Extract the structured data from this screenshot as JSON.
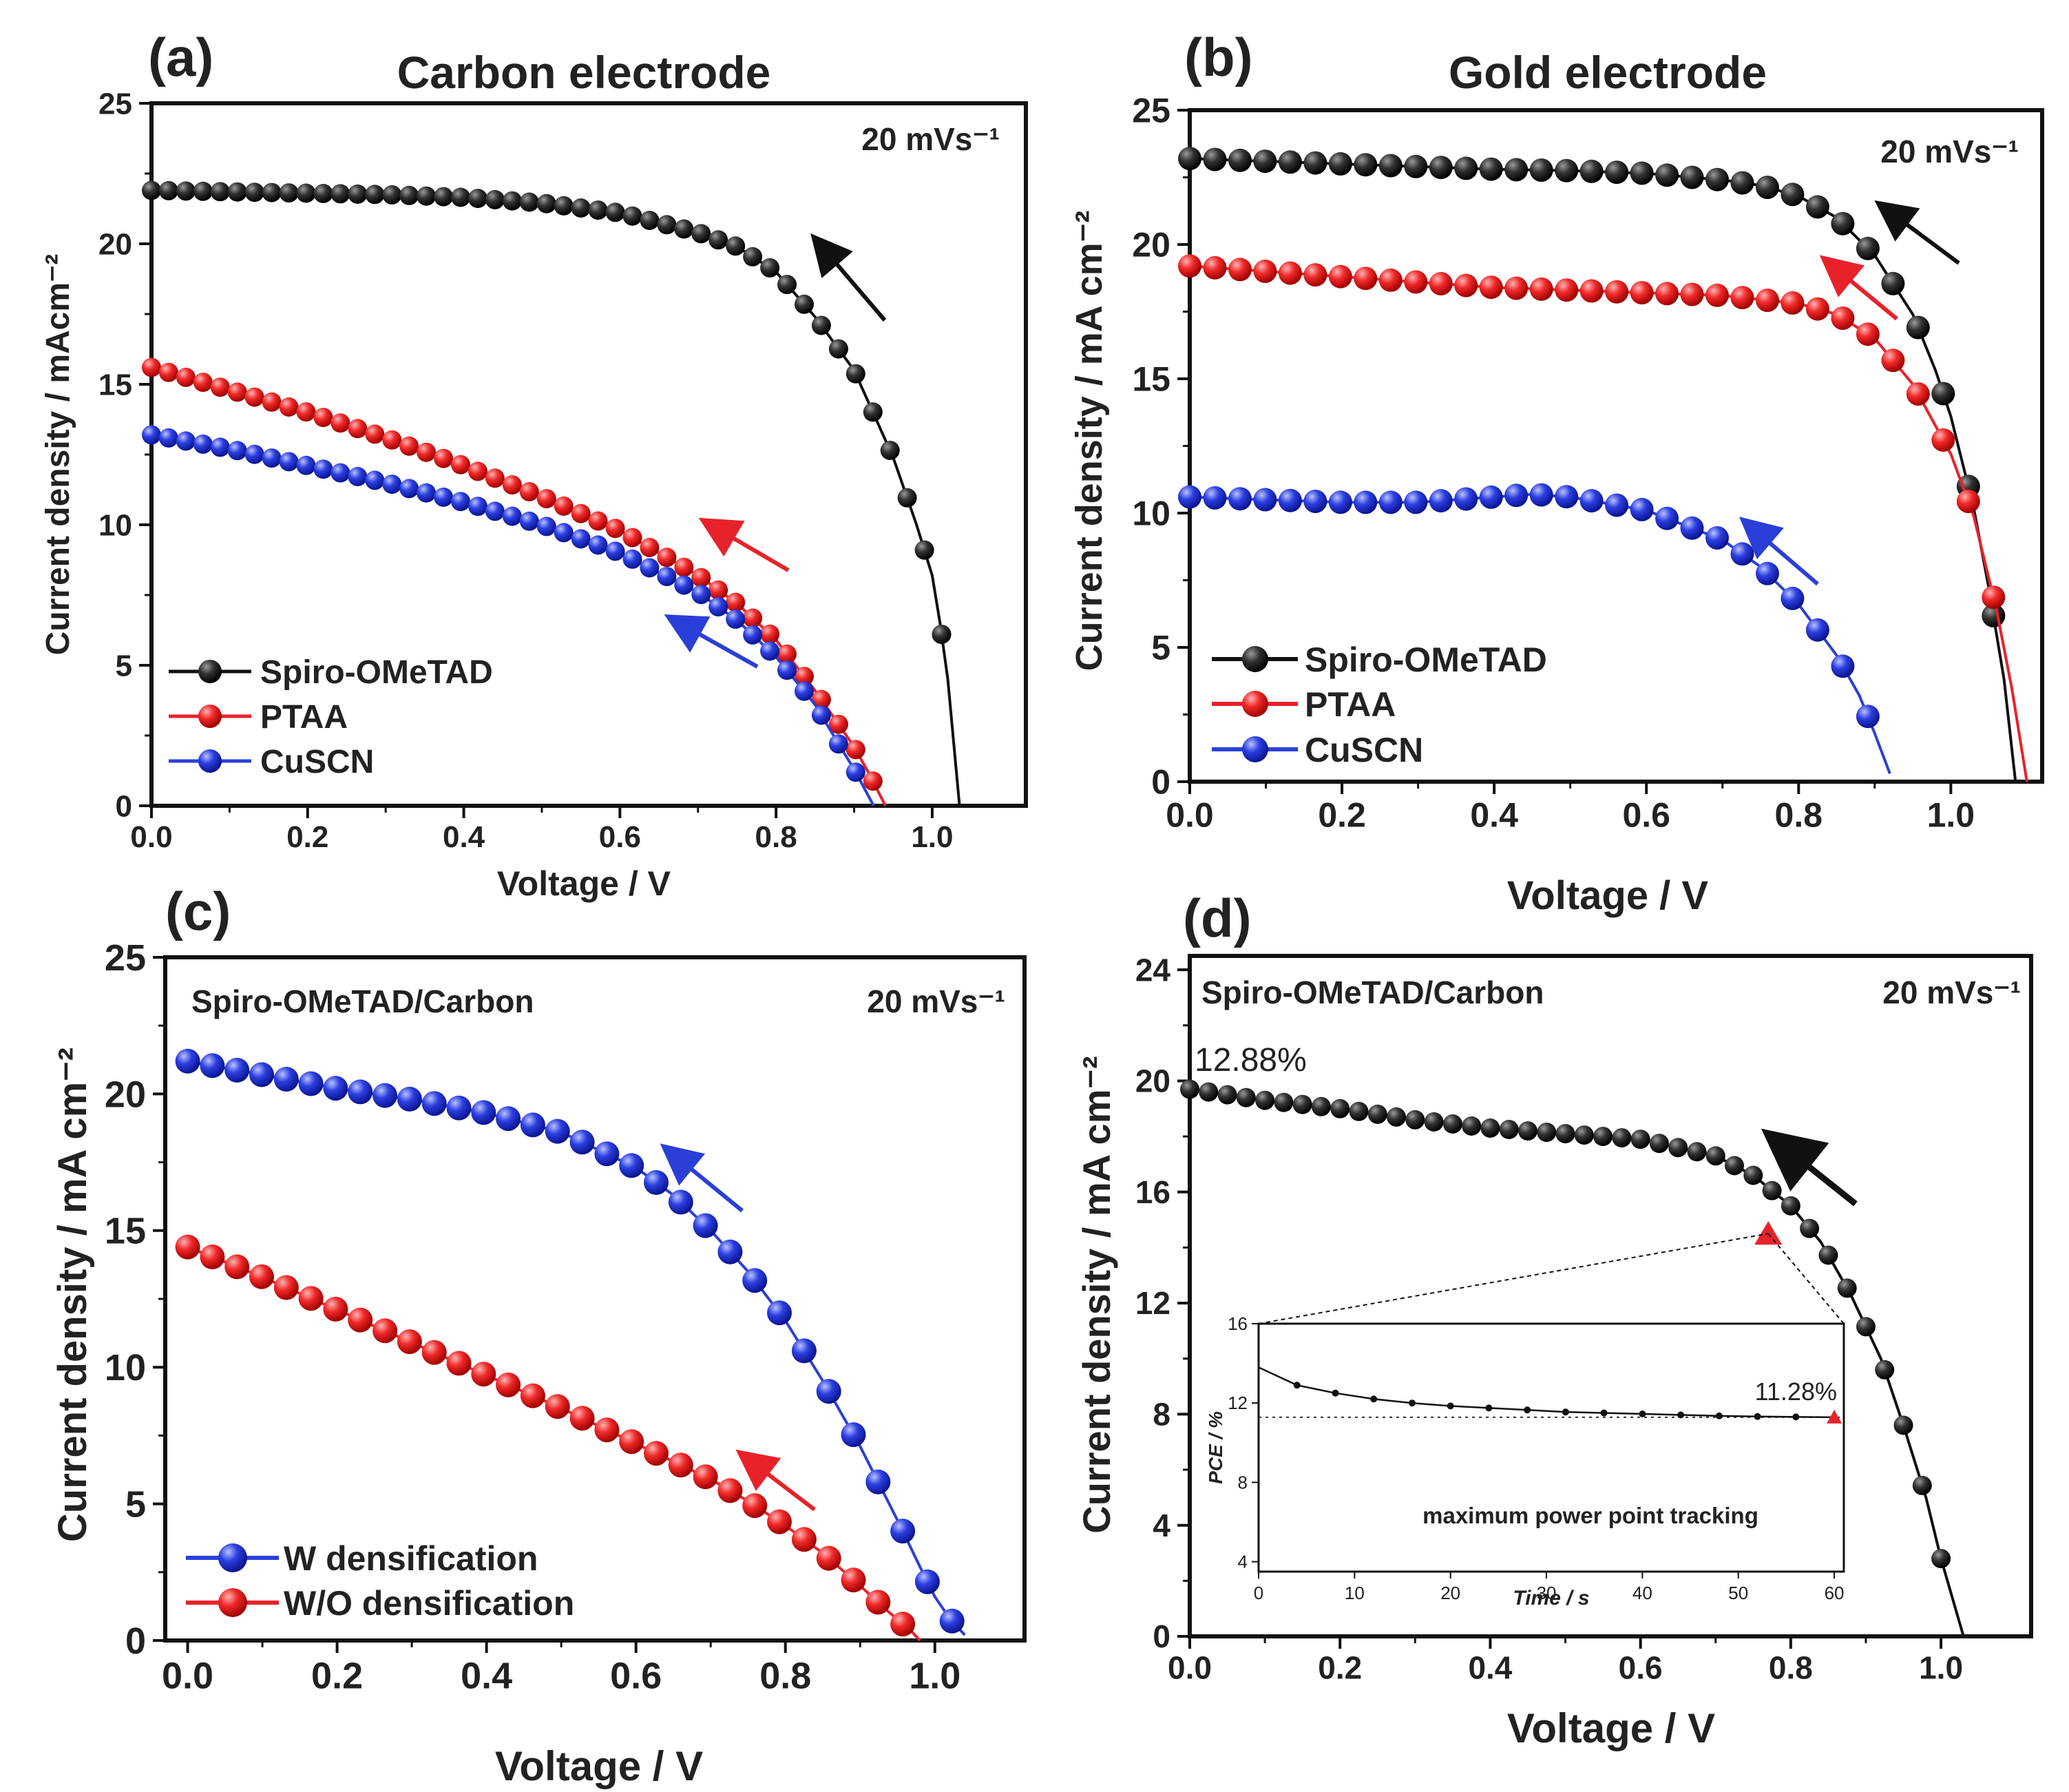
{
  "figure": "perovskite solar cell J-V curves",
  "chart_data": [
    {
      "panel": "(a)",
      "type": "line",
      "title": "Carbon electrode",
      "scan_rate": "20 mVs⁻¹",
      "xlabel": "Voltage / V",
      "ylabel": "Current density / mAcm⁻²",
      "xlim": [
        0,
        1.12
      ],
      "ylim": [
        0,
        25
      ],
      "xticks": [
        0,
        0.2,
        0.4,
        0.6,
        0.8,
        1.0
      ],
      "xtick_labels": [
        "0.0",
        "0.2",
        "0.4",
        "0.6",
        "0.8",
        "1.0"
      ],
      "yticks": [
        0,
        5,
        10,
        15,
        20,
        25
      ],
      "ytick_labels": [
        "0",
        "5",
        "10",
        "15",
        "20",
        "25"
      ],
      "legend_position": "bottom-left",
      "series": [
        {
          "name": "Spiro-OMeTAD",
          "color": "#111111",
          "x": [
            0,
            0.1,
            0.2,
            0.3,
            0.4,
            0.5,
            0.6,
            0.7,
            0.75,
            0.8,
            0.85,
            0.9,
            0.95,
            0.98,
            1.0,
            1.01,
            1.02,
            1.035
          ],
          "y": [
            21.9,
            21.85,
            21.8,
            21.75,
            21.65,
            21.45,
            21.1,
            20.4,
            19.9,
            19.0,
            17.4,
            15.5,
            12.4,
            10.0,
            8.2,
            6.5,
            4.5,
            0
          ]
        },
        {
          "name": "PTAA",
          "color": "#e8222a",
          "x": [
            0,
            0.1,
            0.2,
            0.3,
            0.4,
            0.5,
            0.6,
            0.7,
            0.75,
            0.8,
            0.85,
            0.9,
            0.92,
            0.94
          ],
          "y": [
            15.6,
            14.8,
            14.0,
            13.1,
            12.1,
            11.0,
            9.8,
            8.2,
            7.2,
            5.9,
            4.1,
            2.1,
            1.1,
            0
          ]
        },
        {
          "name": "CuSCN",
          "color": "#2a3fd8",
          "x": [
            0,
            0.1,
            0.2,
            0.3,
            0.4,
            0.5,
            0.6,
            0.7,
            0.75,
            0.8,
            0.85,
            0.88,
            0.9,
            0.925
          ],
          "y": [
            13.2,
            12.7,
            12.1,
            11.5,
            10.8,
            10.0,
            9.0,
            7.6,
            6.6,
            5.3,
            3.6,
            2.2,
            1.3,
            0
          ]
        }
      ]
    },
    {
      "panel": "(b)",
      "type": "line",
      "title": "Gold electrode",
      "scan_rate": "20 mVs⁻¹",
      "xlabel": "Voltage / V",
      "ylabel": "Current density / mA cm⁻²",
      "xlim": [
        0,
        1.12
      ],
      "ylim": [
        0,
        25
      ],
      "xticks": [
        0,
        0.2,
        0.4,
        0.6,
        0.8,
        1.0
      ],
      "xtick_labels": [
        "0.0",
        "0.2",
        "0.4",
        "0.6",
        "0.8",
        "1.0"
      ],
      "yticks": [
        0,
        5,
        10,
        15,
        20,
        25
      ],
      "ytick_labels": [
        "0",
        "5",
        "10",
        "15",
        "20",
        "25"
      ],
      "legend_position": "bottom-left",
      "series": [
        {
          "name": "Spiro-OMeTAD",
          "color": "#111111",
          "x": [
            0,
            0.1,
            0.2,
            0.3,
            0.4,
            0.5,
            0.6,
            0.7,
            0.75,
            0.8,
            0.85,
            0.9,
            0.95,
            0.98,
            1.0,
            1.03,
            1.05,
            1.07,
            1.085
          ],
          "y": [
            23.2,
            23.1,
            23.0,
            22.9,
            22.8,
            22.75,
            22.65,
            22.4,
            22.2,
            21.8,
            21.0,
            19.6,
            17.4,
            15.3,
            13.6,
            10.2,
            7.2,
            3.8,
            0
          ]
        },
        {
          "name": "PTAA",
          "color": "#e8222a",
          "x": [
            0,
            0.1,
            0.2,
            0.3,
            0.4,
            0.5,
            0.6,
            0.7,
            0.8,
            0.85,
            0.9,
            0.95,
            1.0,
            1.03,
            1.06,
            1.08,
            1.1
          ],
          "y": [
            19.2,
            19.0,
            18.8,
            18.6,
            18.4,
            18.3,
            18.2,
            18.1,
            17.8,
            17.4,
            16.5,
            14.8,
            12.2,
            9.9,
            6.4,
            3.5,
            0
          ]
        },
        {
          "name": "CuSCN",
          "color": "#2a3fd8",
          "x": [
            0,
            0.1,
            0.2,
            0.3,
            0.4,
            0.45,
            0.5,
            0.6,
            0.7,
            0.75,
            0.8,
            0.85,
            0.88,
            0.9,
            0.92
          ],
          "y": [
            10.6,
            10.5,
            10.4,
            10.4,
            10.6,
            10.7,
            10.6,
            10.1,
            9.0,
            8.0,
            6.6,
            4.7,
            3.2,
            1.8,
            0.3
          ]
        }
      ]
    },
    {
      "panel": "(c)",
      "type": "line",
      "annotation": "Spiro-OMeTAD/Carbon",
      "scan_rate": "20 mVs⁻¹",
      "xlabel": "Voltage / V",
      "ylabel": "Current density / mA cm⁻²",
      "xlim": [
        -0.03,
        1.12
      ],
      "ylim": [
        0,
        25
      ],
      "xticks": [
        0,
        0.2,
        0.4,
        0.6,
        0.8,
        1.0
      ],
      "xtick_labels": [
        "0.0",
        "0.2",
        "0.4",
        "0.6",
        "0.8",
        "1.0"
      ],
      "yticks": [
        0,
        5,
        10,
        15,
        20,
        25
      ],
      "ytick_labels": [
        "0",
        "5",
        "10",
        "15",
        "20",
        "25"
      ],
      "legend_position": "bottom-left",
      "series": [
        {
          "name": "W densification",
          "color": "#2a3fd8",
          "x": [
            0,
            0.1,
            0.2,
            0.3,
            0.4,
            0.5,
            0.6,
            0.65,
            0.7,
            0.75,
            0.8,
            0.85,
            0.9,
            0.95,
            0.98,
            1.0,
            1.02,
            1.04
          ],
          "y": [
            21.2,
            20.7,
            20.2,
            19.8,
            19.3,
            18.6,
            17.3,
            16.3,
            15.0,
            13.5,
            11.7,
            9.5,
            7.1,
            4.4,
            2.7,
            1.6,
            0.8,
            0.2
          ]
        },
        {
          "name": "W/O densification",
          "color": "#e8222a",
          "x": [
            0,
            0.1,
            0.2,
            0.3,
            0.4,
            0.5,
            0.6,
            0.7,
            0.75,
            0.8,
            0.85,
            0.9,
            0.94,
            0.97,
            0.98
          ],
          "y": [
            14.4,
            13.3,
            12.1,
            10.9,
            9.7,
            8.5,
            7.2,
            5.9,
            5.1,
            4.2,
            3.2,
            2.0,
            1.0,
            0.3,
            0
          ]
        }
      ]
    },
    {
      "panel": "(d)",
      "type": "line",
      "annotation": "Spiro-OMeTAD/Carbon",
      "scan_rate": "20 mVs⁻¹",
      "pce_label": "12.88%",
      "xlabel": "Voltage / V",
      "ylabel": "Current density / mA cm⁻²",
      "xlim": [
        0,
        1.12
      ],
      "ylim": [
        0,
        24.5
      ],
      "xticks": [
        0,
        0.2,
        0.4,
        0.6,
        0.8,
        1.0
      ],
      "xtick_labels": [
        "0.0",
        "0.2",
        "0.4",
        "0.6",
        "0.8",
        "1.0"
      ],
      "yticks": [
        0,
        4,
        8,
        12,
        16,
        20,
        24
      ],
      "ytick_labels": [
        "0",
        "4",
        "8",
        "12",
        "16",
        "20",
        "24"
      ],
      "series": [
        {
          "name": "Spiro-OMeTAD/Carbon",
          "color": "#111111",
          "x": [
            0,
            0.1,
            0.2,
            0.3,
            0.4,
            0.5,
            0.6,
            0.7,
            0.75,
            0.8,
            0.84,
            0.88,
            0.92,
            0.95,
            0.98,
            1.0,
            1.03
          ],
          "y": [
            19.7,
            19.3,
            19.0,
            18.6,
            18.3,
            18.1,
            17.9,
            17.3,
            16.6,
            15.5,
            14.2,
            12.3,
            10.0,
            7.6,
            5.0,
            2.8,
            0
          ]
        }
      ],
      "mpp_marker": {
        "x": 0.77,
        "y": 14.5,
        "color": "#e8222a"
      },
      "inset": {
        "type": "line",
        "caption": "maximum power point tracking",
        "xlabel": "Time / s",
        "ylabel": "PCE / %",
        "xlim": [
          0,
          61
        ],
        "ylim": [
          3.5,
          16
        ],
        "xticks": [
          0,
          10,
          20,
          30,
          40,
          50,
          60
        ],
        "xtick_labels": [
          "0",
          "10",
          "20",
          "30",
          "40",
          "50",
          "60"
        ],
        "yticks": [
          4,
          8,
          12,
          16
        ],
        "ytick_labels": [
          "4",
          "8",
          "12",
          "16"
        ],
        "final_label": "11.28%",
        "reference_y": 11.28,
        "series": [
          {
            "name": "PCE",
            "color": "#111111",
            "x": [
              0,
              4,
              8,
              12,
              16,
              20,
              24,
              28,
              32,
              36,
              40,
              44,
              48,
              52,
              56,
              60
            ],
            "y": [
              13.8,
              12.9,
              12.5,
              12.2,
              12.0,
              11.85,
              11.75,
              11.65,
              11.55,
              11.5,
              11.45,
              11.4,
              11.35,
              11.32,
              11.3,
              11.28
            ]
          }
        ]
      }
    }
  ]
}
